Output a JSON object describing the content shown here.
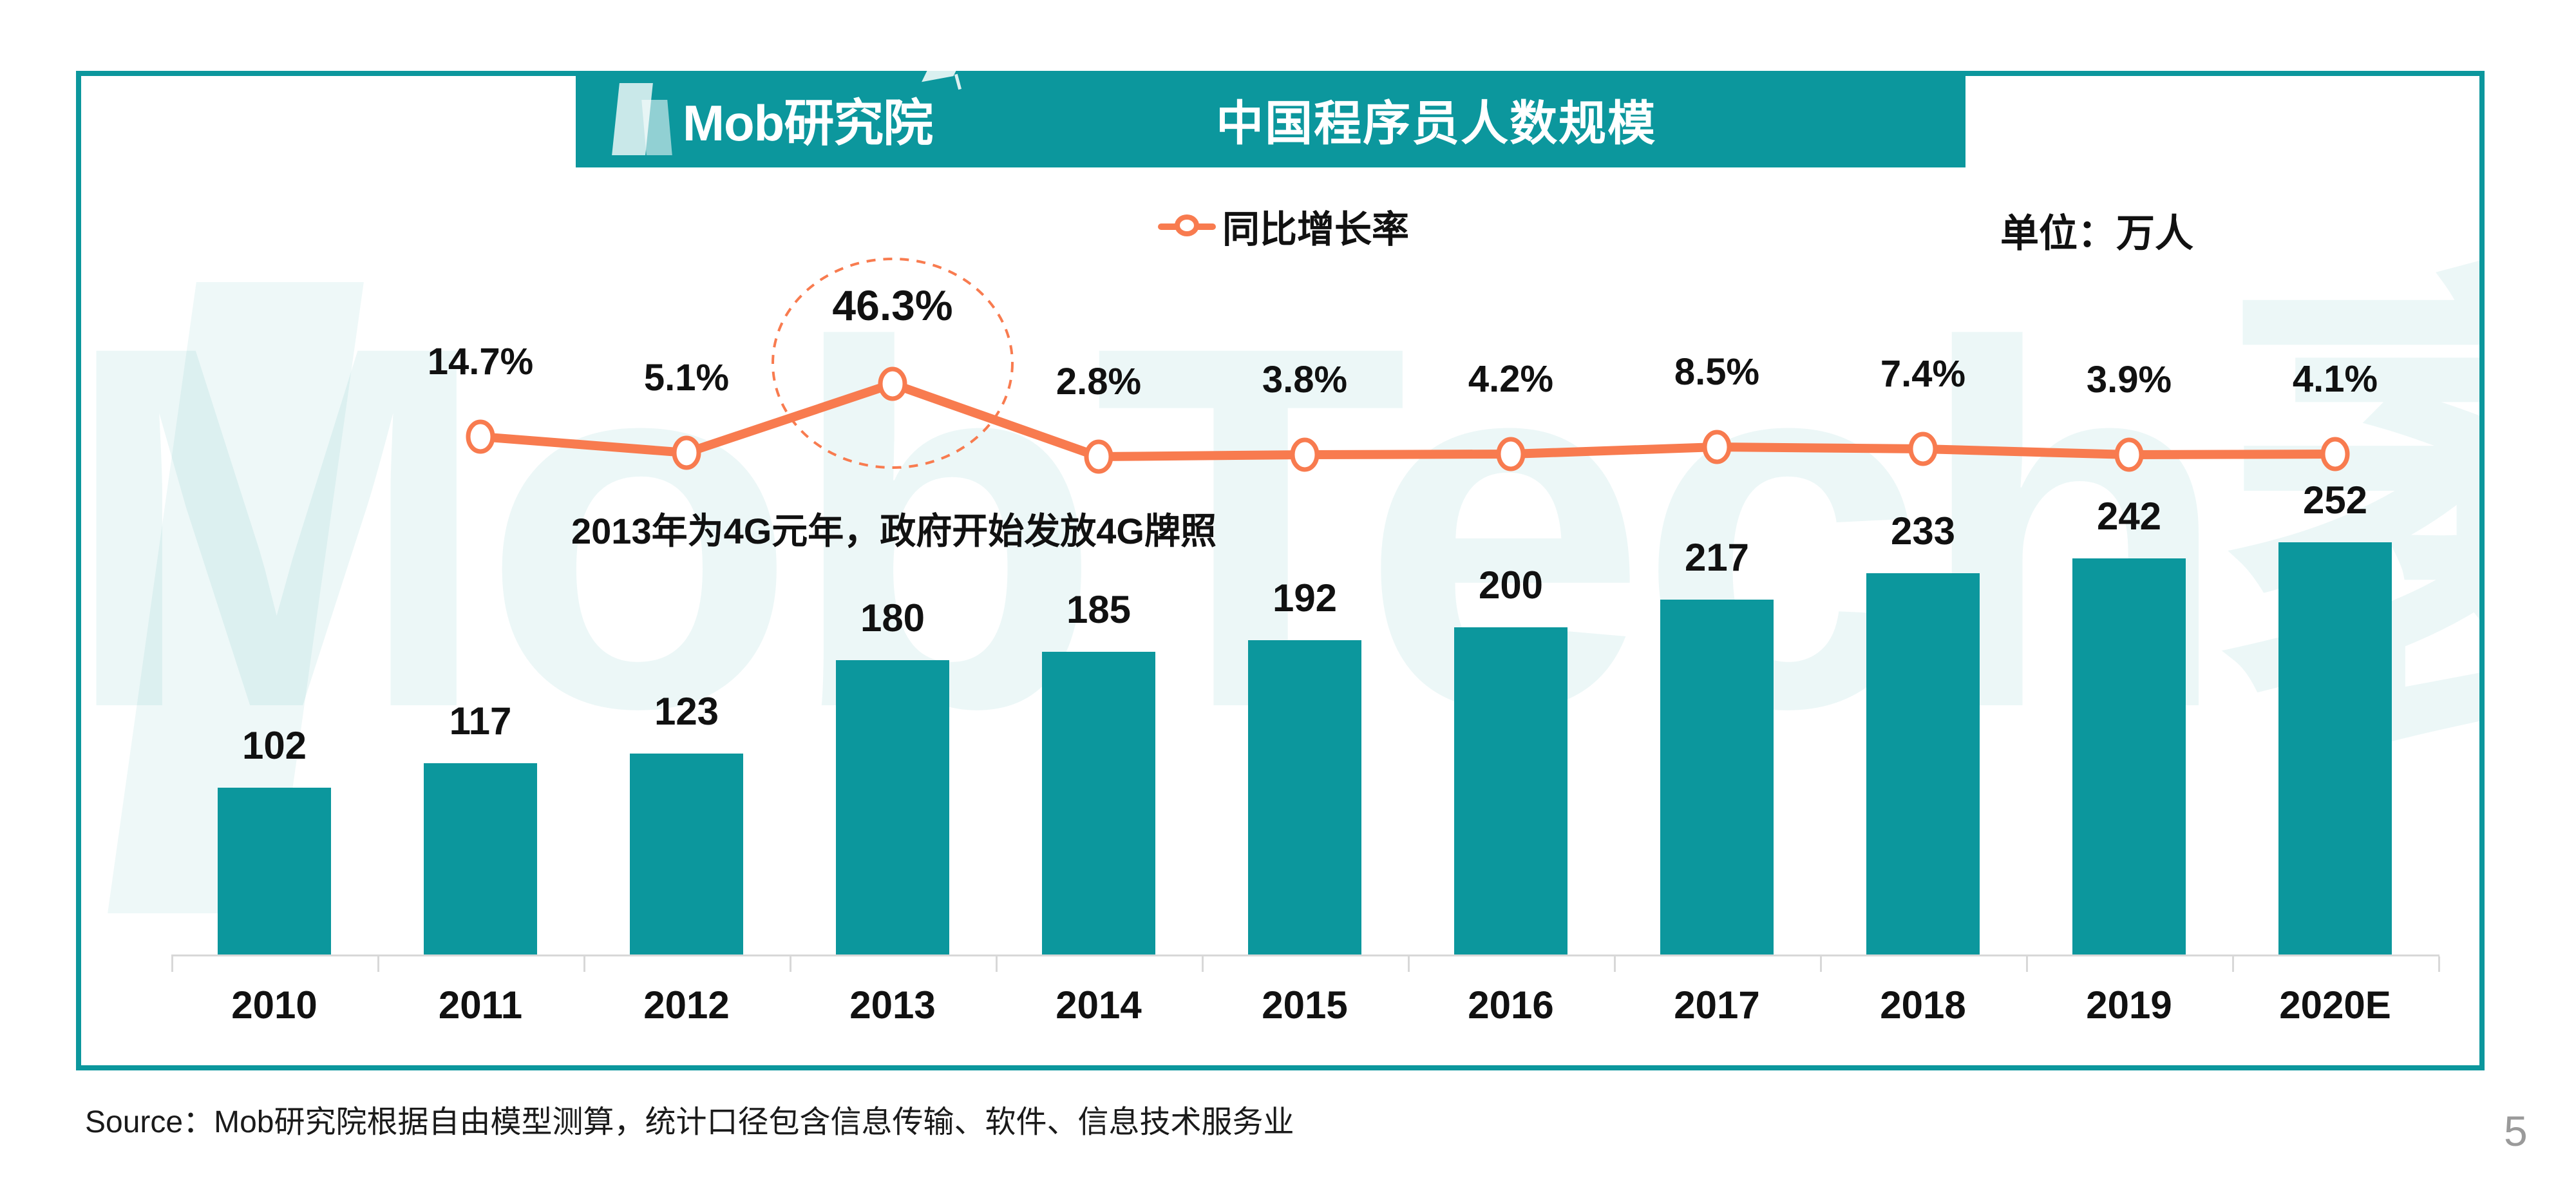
{
  "header": {
    "logo_text": "Mob研究院",
    "title": "中国程序员人数规模"
  },
  "legend": {
    "label": "同比增长率"
  },
  "unit_label": "单位：万人",
  "annotation": "2013年为4G元年，政府开始发放4G牌照",
  "watermark": "MobTech袤博",
  "source_note": "Source：Mob研究院根据自由模型测算，统计口径包含信息传输、软件、信息技术服务业",
  "page_number": "5",
  "colors": {
    "teal": "#0C979D",
    "orange": "#F87B4F",
    "axis_gray": "#D8D8D8",
    "text": "#111111",
    "page_number_gray": "#9a9a9a"
  },
  "chart_data": {
    "type": "bar+line",
    "title": "中国程序员人数规模",
    "unit": "万人",
    "categories": [
      "2010",
      "2011",
      "2012",
      "2013",
      "2014",
      "2015",
      "2016",
      "2017",
      "2018",
      "2019",
      "2020E"
    ],
    "series": [
      {
        "name": "程序员人数",
        "type": "bar",
        "values": [
          102,
          117,
          123,
          180,
          185,
          192,
          200,
          217,
          233,
          242,
          252
        ]
      },
      {
        "name": "同比增长率",
        "type": "line",
        "unit": "%",
        "values": [
          null,
          14.7,
          5.1,
          46.3,
          2.8,
          3.8,
          4.2,
          8.5,
          7.4,
          3.9,
          4.1
        ]
      }
    ],
    "highlight": {
      "category": "2013",
      "value": 46.3
    },
    "legend_position": "top",
    "grid": false
  }
}
